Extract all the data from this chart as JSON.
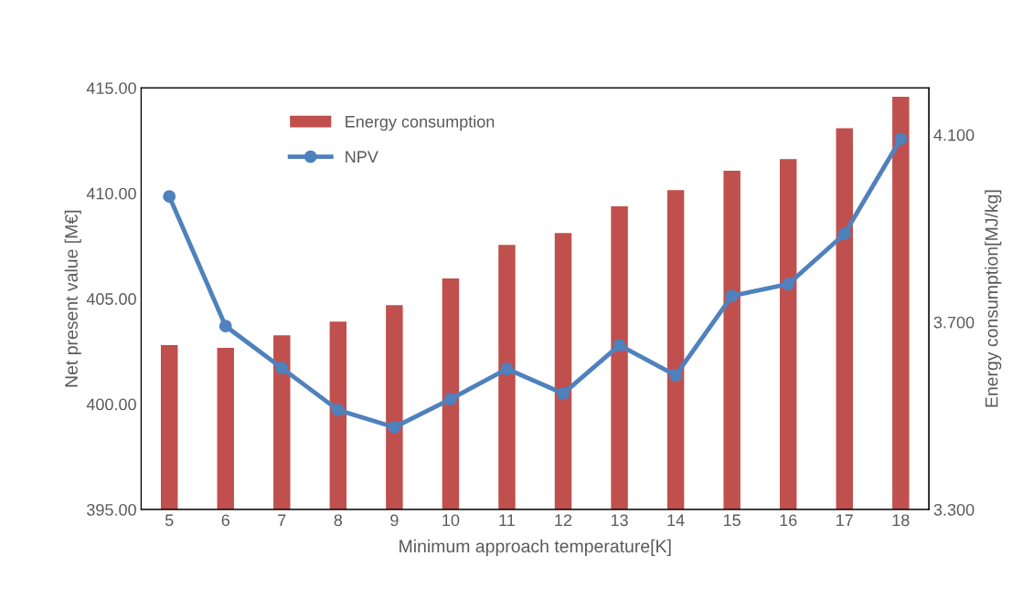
{
  "chart_data": {
    "type": "bar",
    "xlabel": "Minimum approach temperature[K]",
    "ylabel": "Net present value [M€]",
    "y2label": "Energy consumption[MJ/kg]",
    "categories": [
      "5",
      "6",
      "7",
      "8",
      "9",
      "10",
      "11",
      "12",
      "13",
      "14",
      "15",
      "16",
      "17",
      "18"
    ],
    "series": [
      {
        "name": "Energy consumption",
        "axis": "y2",
        "color": "#c0504d",
        "values": [
          3.651,
          3.645,
          3.672,
          3.701,
          3.736,
          3.793,
          3.865,
          3.89,
          3.947,
          3.982,
          4.023,
          4.048,
          4.114,
          4.181
        ]
      },
      {
        "name": "NPV",
        "type": "line",
        "color": "#4f81bd",
        "marker": "circle",
        "values": [
          409.85,
          403.7,
          401.71,
          399.72,
          398.9,
          400.24,
          401.67,
          400.5,
          402.79,
          401.36,
          405.13,
          405.69,
          408.07,
          412.58
        ]
      }
    ],
    "ylim": [
      395,
      415
    ],
    "yticks": [
      {
        "value": 395,
        "label": "395.00"
      },
      {
        "value": 400,
        "label": "400.00"
      },
      {
        "value": 405,
        "label": "405.00"
      },
      {
        "value": 410,
        "label": "410.00"
      },
      {
        "value": 415,
        "label": "415.00"
      }
    ],
    "y2lim": [
      3.3,
      4.2
    ],
    "y2ticks": [
      {
        "value": 3.3,
        "label": "3.300"
      },
      {
        "value": 3.7,
        "label": "3.700"
      },
      {
        "value": 4.1,
        "label": "4.100"
      }
    ],
    "grid": false,
    "legend": "top left"
  }
}
